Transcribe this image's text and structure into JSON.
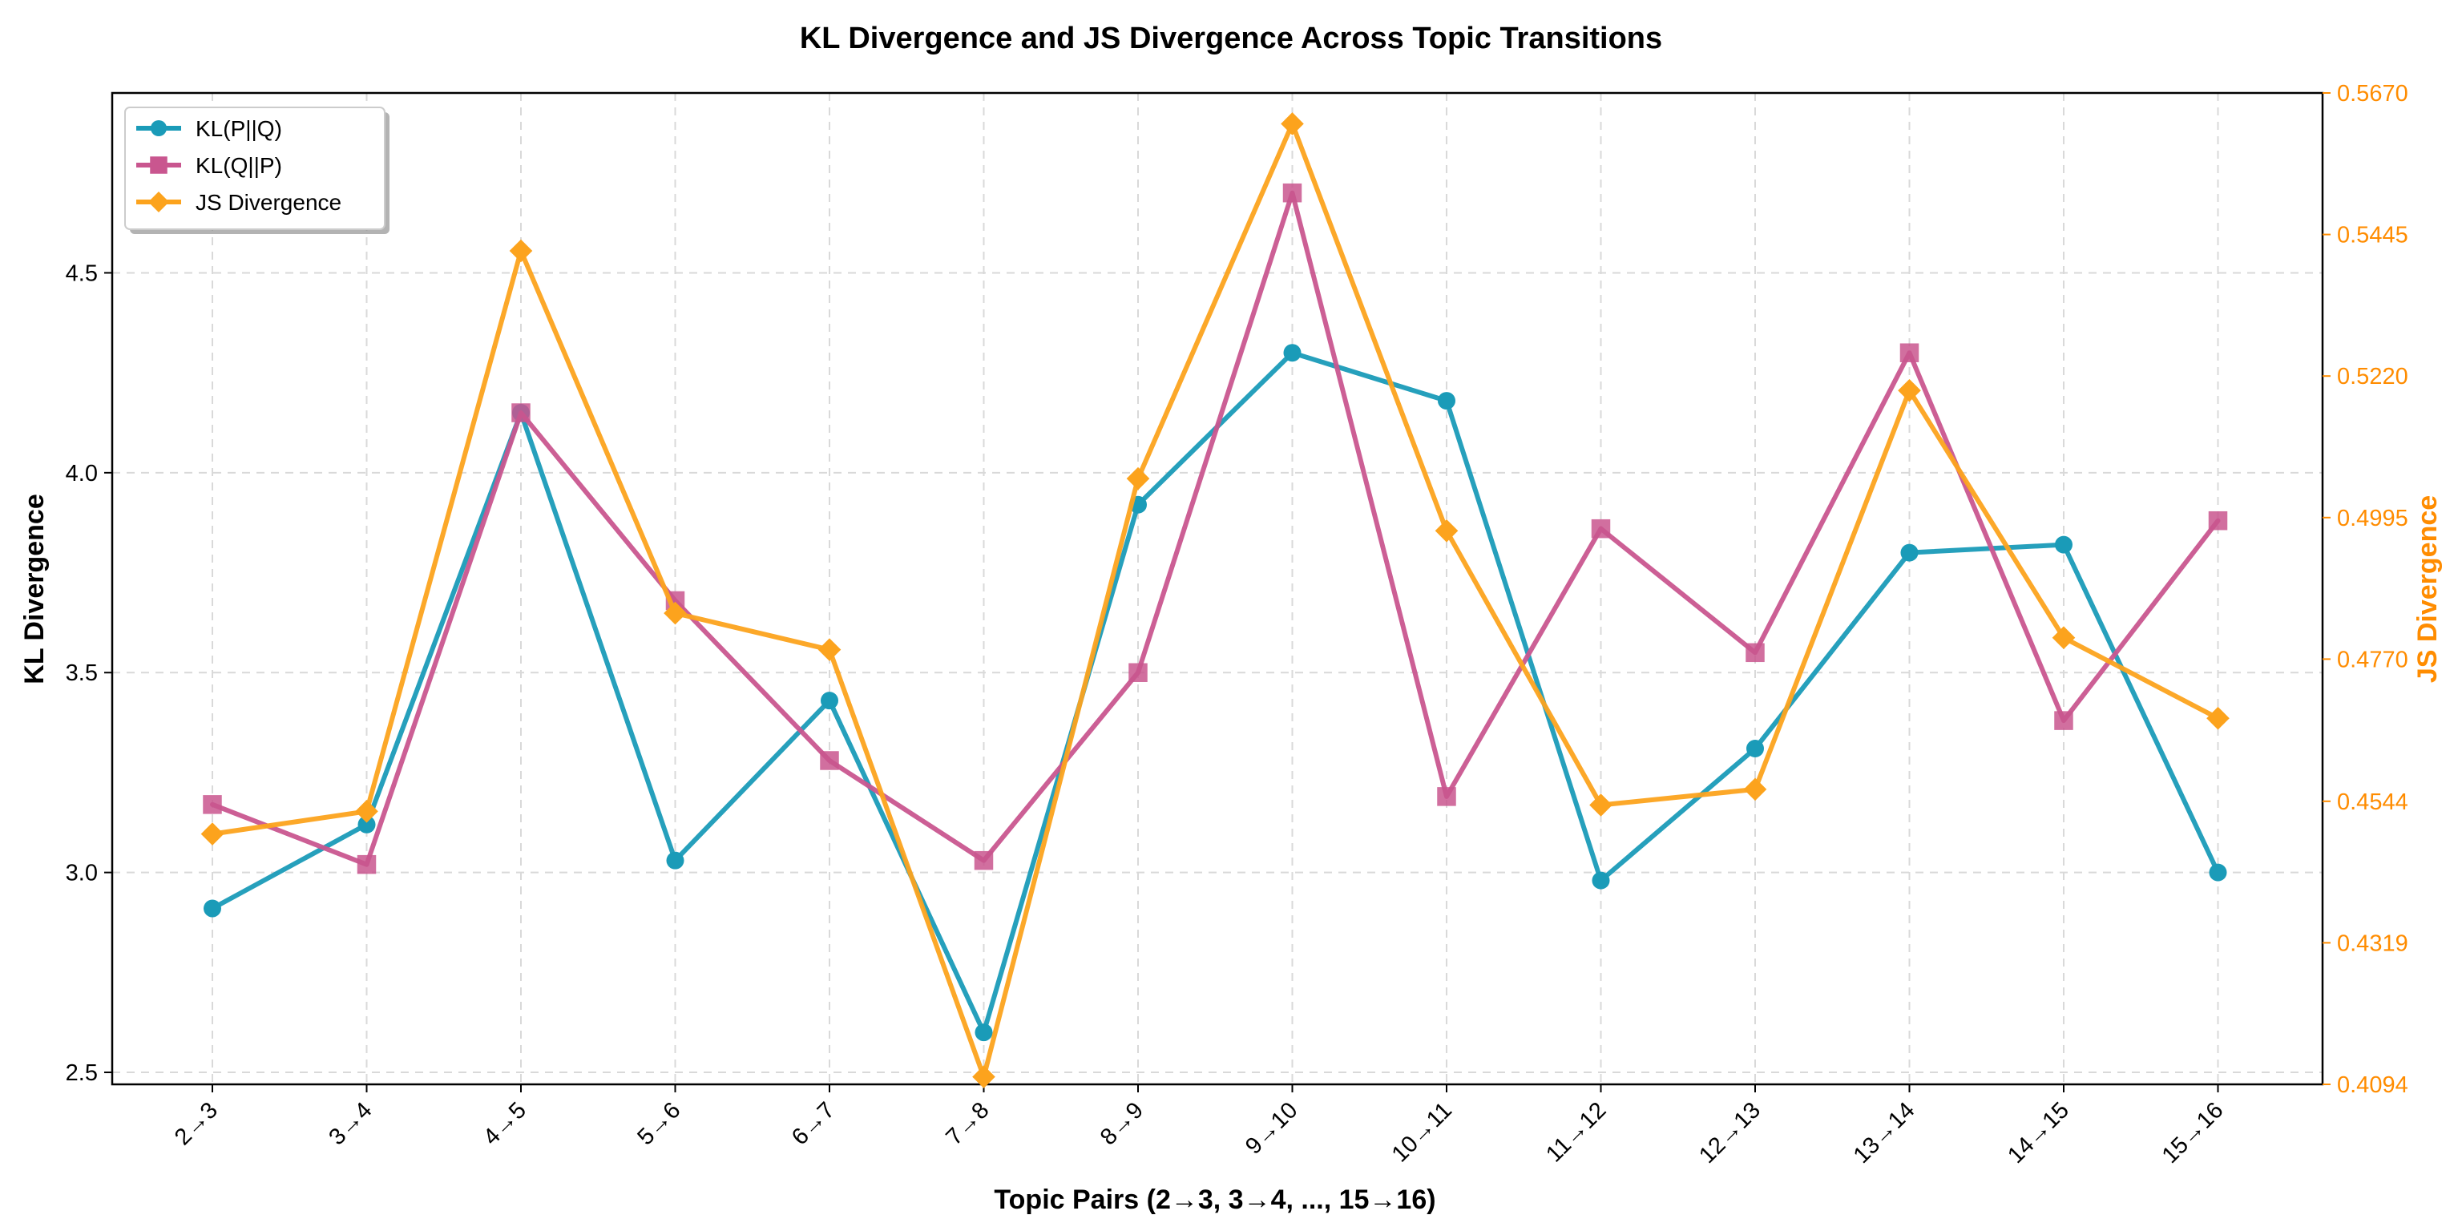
{
  "chart_data": {
    "type": "line",
    "title": "KL Divergence and JS Divergence Across Topic Transitions",
    "xlabel": "Topic Pairs (2→3, 3→4, ..., 15→16)",
    "ylabel": "KL Divergence",
    "ylabel_right": "JS Divergence",
    "categories": [
      "2→3",
      "3→4",
      "4→5",
      "5→6",
      "6→7",
      "7→8",
      "8→9",
      "9→10",
      "10→11",
      "11→12",
      "12→13",
      "13→14",
      "14→15",
      "15→16"
    ],
    "ylim": [
      2.47,
      4.95
    ],
    "yticks": [
      2.5,
      3.0,
      3.5,
      4.0,
      4.5
    ],
    "ytick_labels": [
      "2.5",
      "3.0",
      "3.5",
      "4.0",
      "4.5"
    ],
    "ylim_right": [
      0.4094,
      0.567
    ],
    "yticks_right": [
      0.4094,
      0.4319,
      0.4544,
      0.477,
      0.4995,
      0.522,
      0.5445,
      0.567
    ],
    "ytick_labels_right": [
      "0.4094",
      "0.4319",
      "0.4544",
      "0.4770",
      "0.4995",
      "0.5220",
      "0.5445",
      "0.5670"
    ],
    "grid": true,
    "legend_position": "top-left",
    "series": [
      {
        "name": "KL(P||Q)",
        "axis": "left",
        "marker": "circle",
        "color": "#1a9bb8",
        "values": [
          2.91,
          3.12,
          4.15,
          3.03,
          3.43,
          2.6,
          3.92,
          4.3,
          4.18,
          2.98,
          3.31,
          3.8,
          3.82,
          3.0
        ]
      },
      {
        "name": "KL(Q||P)",
        "axis": "left",
        "marker": "square",
        "color": "#c9568f",
        "values": [
          3.17,
          3.02,
          4.15,
          3.68,
          3.28,
          3.03,
          3.5,
          4.7,
          3.19,
          3.86,
          3.55,
          4.3,
          3.38,
          3.88
        ]
      },
      {
        "name": "JS Divergence",
        "axis": "right",
        "marker": "diamond",
        "color": "#fca31d",
        "values": [
          0.4492,
          0.4528,
          0.5419,
          0.4843,
          0.4785,
          0.4106,
          0.5057,
          0.5621,
          0.4974,
          0.4538,
          0.4563,
          0.5197,
          0.4804,
          0.4676
        ]
      }
    ],
    "colors": {
      "right_axis": "#ff8c00",
      "grid": "#d9d9d9"
    }
  }
}
